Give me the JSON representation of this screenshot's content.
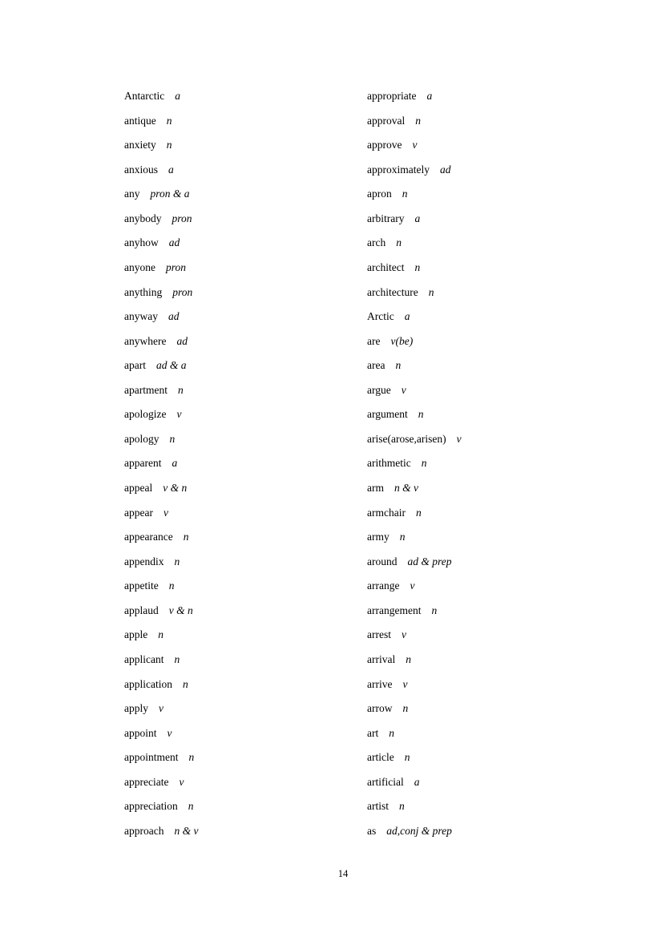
{
  "columns": [
    [
      {
        "word": "Antarctic",
        "pos": "a"
      },
      {
        "word": "antique",
        "pos": "n"
      },
      {
        "word": "anxiety",
        "pos": "n"
      },
      {
        "word": "anxious",
        "pos": "a"
      },
      {
        "word": "any",
        "pos": "pron & a"
      },
      {
        "word": "anybody",
        "pos": "pron"
      },
      {
        "word": "anyhow",
        "pos": "ad"
      },
      {
        "word": "anyone",
        "pos": "pron"
      },
      {
        "word": "anything",
        "pos": "pron"
      },
      {
        "word": "anyway",
        "pos": "ad"
      },
      {
        "word": "anywhere",
        "pos": "ad"
      },
      {
        "word": "apart",
        "pos": "ad & a"
      },
      {
        "word": "apartment",
        "pos": "n"
      },
      {
        "word": "apologize",
        "pos": "v"
      },
      {
        "word": "apology",
        "pos": "n"
      },
      {
        "word": "apparent",
        "pos": "a"
      },
      {
        "word": "appeal",
        "pos": "v & n"
      },
      {
        "word": "appear",
        "pos": "v"
      },
      {
        "word": "appearance",
        "pos": "n"
      },
      {
        "word": "appendix",
        "pos": "n"
      },
      {
        "word": "appetite",
        "pos": "n"
      },
      {
        "word": "applaud",
        "pos": "v & n"
      },
      {
        "word": "apple",
        "pos": "n"
      },
      {
        "word": "applicant",
        "pos": "n"
      },
      {
        "word": "application",
        "pos": "n"
      },
      {
        "word": "apply",
        "pos": "v"
      },
      {
        "word": "appoint",
        "pos": "v"
      },
      {
        "word": "appointment",
        "pos": "n"
      },
      {
        "word": "appreciate",
        "pos": "v"
      },
      {
        "word": "appreciation",
        "pos": "n"
      },
      {
        "word": "approach",
        "pos": "n & v"
      }
    ],
    [
      {
        "word": "appropriate",
        "pos": "a"
      },
      {
        "word": "approval",
        "pos": "n"
      },
      {
        "word": "approve",
        "pos": "v"
      },
      {
        "word": "approximately",
        "pos": "ad"
      },
      {
        "word": "apron",
        "pos": "n"
      },
      {
        "word": "arbitrary",
        "pos": "a"
      },
      {
        "word": "arch",
        "pos": "n"
      },
      {
        "word": "architect",
        "pos": "n"
      },
      {
        "word": "architecture",
        "pos": "n"
      },
      {
        "word": "Arctic",
        "pos": "a"
      },
      {
        "word": "are",
        "pos": "v(be)"
      },
      {
        "word": "area",
        "pos": "n"
      },
      {
        "word": "argue",
        "pos": "v"
      },
      {
        "word": "argument",
        "pos": "n"
      },
      {
        "word": "arise(arose,arisen)",
        "pos": "v"
      },
      {
        "word": "arithmetic",
        "pos": "n"
      },
      {
        "word": "arm",
        "pos": "n & v"
      },
      {
        "word": "armchair",
        "pos": "n"
      },
      {
        "word": "army",
        "pos": "n"
      },
      {
        "word": "around",
        "pos": "ad & prep"
      },
      {
        "word": "arrange",
        "pos": "v"
      },
      {
        "word": "arrangement",
        "pos": "n"
      },
      {
        "word": "arrest",
        "pos": "v"
      },
      {
        "word": "arrival",
        "pos": "n"
      },
      {
        "word": "arrive",
        "pos": "v"
      },
      {
        "word": "arrow",
        "pos": "n"
      },
      {
        "word": "art",
        "pos": "n"
      },
      {
        "word": "article",
        "pos": "n"
      },
      {
        "word": "artificial",
        "pos": "a"
      },
      {
        "word": "artist",
        "pos": "n"
      },
      {
        "word": "as",
        "pos": "ad,conj & prep"
      }
    ]
  ],
  "page_number": "14"
}
